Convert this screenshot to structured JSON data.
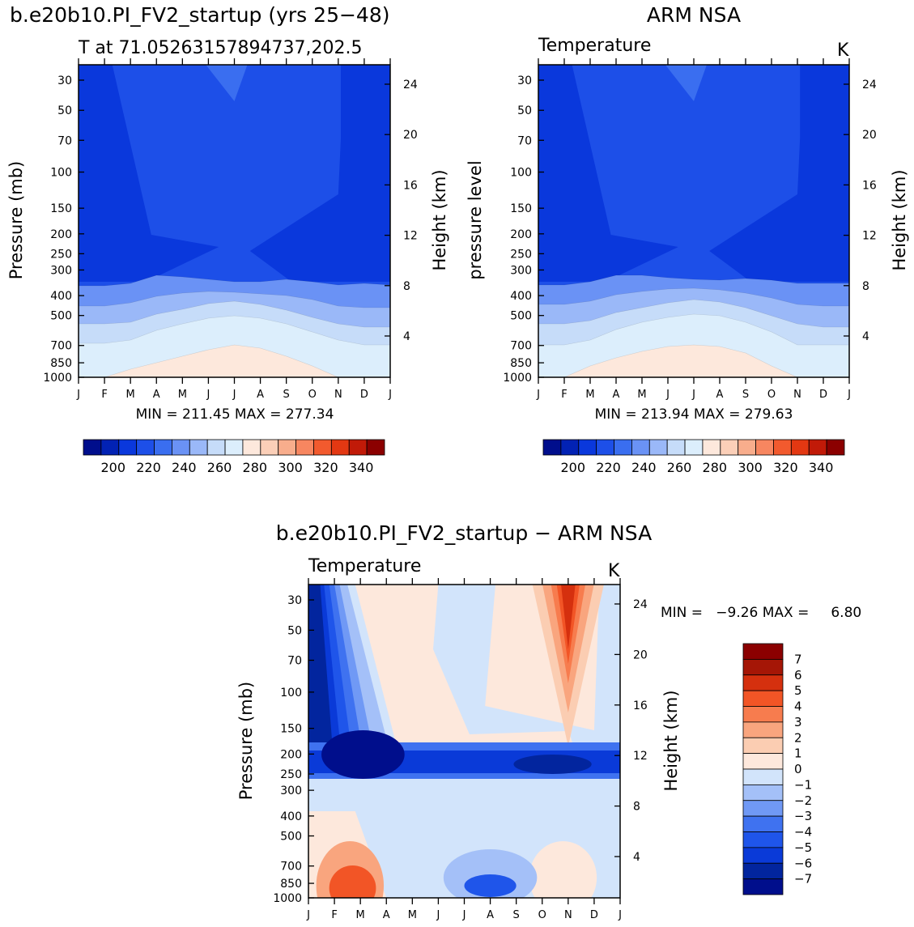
{
  "scales": {
    "temp": {
      "colors": [
        "#000e8c",
        "#0222b4",
        "#0a38dc",
        "#1d4fe8",
        "#3a6ef0",
        "#6a92f5",
        "#9ab8f8",
        "#c6dcf9",
        "#dceefc",
        "#fde8dc",
        "#fbcfb8",
        "#f8ad8c",
        "#f78660",
        "#f25a2e",
        "#e33812",
        "#c11a08",
        "#8b0000"
      ],
      "tick_labels": [
        "200",
        "220",
        "240",
        "260",
        "280",
        "300",
        "320",
        "340"
      ],
      "tick_edges": [
        2,
        4,
        6,
        8,
        10,
        12,
        14,
        16
      ]
    },
    "diff": {
      "colors": [
        "#000e8c",
        "#02259e",
        "#0a3ad8",
        "#1f55ea",
        "#3f72f0",
        "#7099f5",
        "#a4c0f8",
        "#d2e4fb",
        "#fde8dc",
        "#fbcdb2",
        "#f9a57e",
        "#f77c4e",
        "#f25526",
        "#d5300e",
        "#a51606",
        "#8b0000"
      ],
      "labels": [
        "7",
        "6",
        "5",
        "4",
        "3",
        "2",
        "1",
        "0",
        "−1",
        "−2",
        "−3",
        "−4",
        "−5",
        "−6",
        "−7"
      ]
    }
  },
  "chart_data": [
    {
      "type": "heatmap",
      "title": "b.e20b10.PI_FV2_startup (yrs 25−48)",
      "subtitle": "T at 71.05263157894737,202.5",
      "stats": "MIN = 211.45 MAX = 277.34",
      "ylabel": "Pressure (mb)",
      "ylabel_right": "Height (km)",
      "units": "",
      "x_tick_labels": [
        "J",
        "F",
        "M",
        "A",
        "M",
        "J",
        "J",
        "A",
        "S",
        "O",
        "N",
        "D",
        "J"
      ],
      "y_levels": [
        30,
        50,
        70,
        100,
        150,
        200,
        250,
        300,
        400,
        500,
        700,
        850,
        1000
      ],
      "height_ticks": [
        24,
        20,
        16,
        12,
        8,
        4
      ],
      "bands": [
        {
          "color_index": 4,
          "boundary": [
            355,
            355,
            355,
            355,
            355,
            355,
            355,
            355,
            355,
            355,
            355,
            355,
            355
          ],
          "boundary_hi": [
            [
              38,
              0
            ]
          ]
        },
        {
          "color_index": 5,
          "boundary": [
            353,
            353,
            350,
            340,
            342,
            345,
            348,
            348,
            345,
            348,
            352,
            350,
            352
          ]
        },
        {
          "color_index": 6,
          "boundary": [
            378,
            378,
            374,
            366,
            362,
            360,
            361,
            363,
            365,
            370,
            378,
            380,
            380
          ]
        },
        {
          "color_index": 7,
          "boundary": [
            400,
            400,
            398,
            388,
            382,
            375,
            372,
            376,
            383,
            392,
            400,
            404,
            404
          ]
        },
        {
          "color_index": 8,
          "boundary": [
            424,
            424,
            420,
            408,
            400,
            393,
            390,
            393,
            400,
            410,
            420,
            426,
            426
          ]
        },
        {
          "color_index": 9,
          "boundary": [
            466,
            466,
            456,
            448,
            440,
            432,
            426,
            430,
            440,
            452,
            466,
            466,
            466
          ]
        }
      ],
      "stratosphere": "dark-column"
    },
    {
      "type": "heatmap",
      "title": "ARM NSA",
      "subtitle": "Temperature",
      "units": "K",
      "stats": "MIN = 213.94 MAX = 279.63",
      "ylabel": "pressure level",
      "ylabel_right": "Height (km)",
      "x_tick_labels": [
        "J",
        "F",
        "M",
        "A",
        "M",
        "J",
        "J",
        "A",
        "S",
        "O",
        "N",
        "D",
        "J"
      ],
      "y_levels": [
        30,
        50,
        70,
        100,
        150,
        200,
        250,
        300,
        400,
        500,
        700,
        850,
        1000
      ],
      "height_ticks": [
        24,
        20,
        16,
        12,
        8,
        4
      ],
      "bands": [
        {
          "color_index": 5,
          "boundary": [
            352,
            352,
            348,
            340,
            340,
            343,
            345,
            346,
            344,
            346,
            350,
            350,
            350
          ]
        },
        {
          "color_index": 6,
          "boundary": [
            376,
            376,
            372,
            364,
            360,
            357,
            356,
            358,
            362,
            368,
            376,
            378,
            378
          ]
        },
        {
          "color_index": 7,
          "boundary": [
            400,
            400,
            396,
            386,
            380,
            374,
            370,
            373,
            380,
            390,
            400,
            404,
            404
          ]
        },
        {
          "color_index": 8,
          "boundary": [
            426,
            426,
            420,
            407,
            398,
            392,
            388,
            390,
            398,
            410,
            426,
            426,
            426
          ]
        },
        {
          "color_index": 9,
          "boundary": [
            466,
            466,
            452,
            442,
            434,
            428,
            426,
            428,
            436,
            452,
            466,
            466,
            466
          ]
        }
      ],
      "stratosphere": "dark-column"
    },
    {
      "type": "heatmap",
      "title": "b.e20b10.PI_FV2_startup − ARM NSA",
      "subtitle": "Temperature",
      "units": "K",
      "stats": "MIN =   −9.26 MAX =     6.80",
      "ylabel": "Pressure (mb)",
      "ylabel_right": "Height (km)",
      "x_tick_labels": [
        "J",
        "F",
        "M",
        "A",
        "M",
        "J",
        "J",
        "A",
        "S",
        "O",
        "N",
        "D",
        "J"
      ],
      "y_levels": [
        30,
        50,
        70,
        100,
        150,
        200,
        250,
        300,
        400,
        500,
        700,
        850,
        1000
      ],
      "height_ticks": [
        24,
        20,
        16,
        12,
        8,
        4
      ]
    }
  ]
}
